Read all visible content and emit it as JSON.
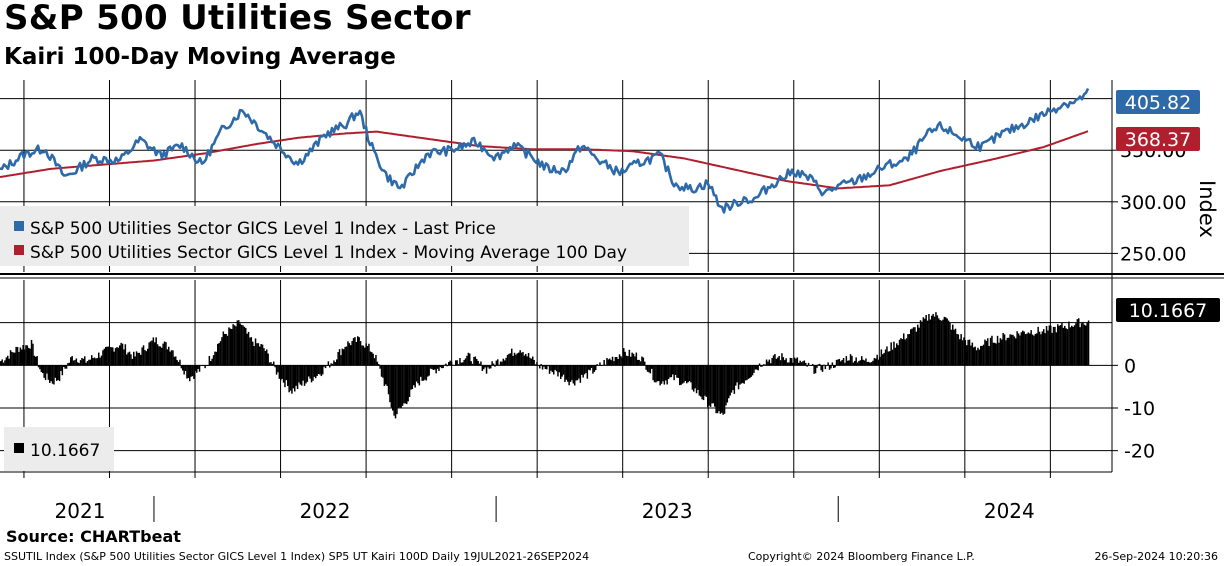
{
  "title": "S&P 500 Utilities Sector",
  "subtitle": "Kairi 100-Day Moving Average",
  "source": "Source: CHARTbeat",
  "footer": {
    "left": "SSUTIL Index (S&P 500 Utilities Sector GICS Level 1 Index) SP5 UT Kairi 100D  Daily 19JUL2021-26SEP2024",
    "center": "Copyright© 2024 Bloomberg Finance L.P.",
    "right": "26-Sep-2024 10:20:36"
  },
  "colors": {
    "price": "#2f6aa8",
    "moving_average": "#b01f2e",
    "kairi": "#000000",
    "grid": "#000000",
    "legend_bg": "#ececec"
  },
  "chart_data": [
    {
      "type": "line",
      "title": "S&P 500 Utilities Sector",
      "ylabel": "Index",
      "ylim": [
        232,
        418
      ],
      "yticks": [
        250,
        300,
        350
      ],
      "ytick_labels": [
        "250.00",
        "300.00",
        "350.00"
      ],
      "x_range": [
        2021.55,
        2024.73
      ],
      "x_label_positions": [
        2021.5,
        2022.5,
        2023.5,
        2024.5
      ],
      "x_labels": [
        "2021",
        "2022",
        "2023",
        "2024"
      ],
      "x_dividers": [
        2022.0,
        2023.0,
        2024.0
      ],
      "legend_position": "bottom-left",
      "series": [
        {
          "name": "S&P 500 Utilities Sector GICS Level 1 Index - Last Price",
          "x": [
            2021.55,
            2021.62,
            2021.68,
            2021.74,
            2021.77,
            2021.82,
            2021.9,
            2021.96,
            2022.02,
            2022.08,
            2022.14,
            2022.2,
            2022.26,
            2022.3,
            2022.35,
            2022.42,
            2022.46,
            2022.5,
            2022.56,
            2022.6,
            2022.64,
            2022.68,
            2022.72,
            2022.74,
            2022.76,
            2022.8,
            2022.87,
            2022.94,
            2023.0,
            2023.05,
            2023.1,
            2023.15,
            2023.2,
            2023.25,
            2023.3,
            2023.36,
            2023.42,
            2023.48,
            2023.52,
            2023.57,
            2023.62,
            2023.66,
            2023.7,
            2023.73,
            2023.75,
            2023.78,
            2023.82,
            2023.87,
            2023.92,
            2023.96,
            2024.0,
            2024.05,
            2024.1,
            2024.14,
            2024.2,
            2024.26,
            2024.3,
            2024.36,
            2024.42,
            2024.48,
            2024.54,
            2024.6,
            2024.66,
            2024.7,
            2024.73
          ],
          "values": [
            330,
            346,
            352,
            324,
            330,
            342,
            340,
            360,
            345,
            355,
            336,
            370,
            389,
            375,
            358,
            337,
            350,
            365,
            375,
            388,
            350,
            325,
            313,
            320,
            330,
            347,
            350,
            358,
            343,
            355,
            345,
            332,
            330,
            355,
            340,
            328,
            338,
            345,
            318,
            312,
            318,
            293,
            298,
            304,
            300,
            310,
            320,
            330,
            322,
            308,
            315,
            320,
            328,
            335,
            340,
            365,
            373,
            362,
            353,
            366,
            375,
            385,
            395,
            398,
            406
          ]
        },
        {
          "name": "S&P 500 Utilities Sector GICS Level 1 Index - Moving Average 100 Day",
          "x": [
            2021.55,
            2021.7,
            2021.85,
            2022.0,
            2022.15,
            2022.3,
            2022.42,
            2022.55,
            2022.65,
            2022.8,
            2022.95,
            2023.1,
            2023.25,
            2023.4,
            2023.55,
            2023.7,
            2023.85,
            2024.0,
            2024.15,
            2024.3,
            2024.45,
            2024.6,
            2024.73
          ],
          "values": [
            324,
            332,
            336,
            340,
            347,
            356,
            362,
            366,
            368,
            361,
            354,
            351,
            351,
            349,
            342,
            331,
            320,
            313,
            316,
            330,
            341,
            353,
            368.37
          ]
        }
      ],
      "last_value_labels": [
        "405.82",
        "368.37"
      ]
    },
    {
      "type": "bar",
      "title": "SP5 UT Kairi 100D",
      "ylim": [
        -25,
        20
      ],
      "yticks": [
        -20,
        -10,
        0
      ],
      "ytick_labels": [
        "-20",
        "-10",
        "0"
      ],
      "x_range": [
        2021.55,
        2024.73
      ],
      "legend_position": "bottom-left",
      "series": [
        {
          "name": "Kairi 100D",
          "x": [
            2021.55,
            2021.6,
            2021.64,
            2021.67,
            2021.7,
            2021.72,
            2021.76,
            2021.8,
            2021.85,
            2021.9,
            2021.94,
            2022.0,
            2022.05,
            2022.1,
            2022.15,
            2022.2,
            2022.25,
            2022.28,
            2022.32,
            2022.36,
            2022.4,
            2022.44,
            2022.48,
            2022.52,
            2022.56,
            2022.6,
            2022.64,
            2022.68,
            2022.7,
            2022.73,
            2022.77,
            2022.82,
            2022.87,
            2022.92,
            2022.97,
            2023.02,
            2023.07,
            2023.12,
            2023.18,
            2023.22,
            2023.27,
            2023.32,
            2023.37,
            2023.42,
            2023.47,
            2023.52,
            2023.57,
            2023.62,
            2023.66,
            2023.69,
            2023.73,
            2023.78,
            2023.83,
            2023.88,
            2023.93,
            2023.98,
            2024.03,
            2024.08,
            2024.13,
            2024.18,
            2024.23,
            2024.27,
            2024.31,
            2024.35,
            2024.4,
            2024.45,
            2024.5,
            2024.55,
            2024.6,
            2024.65,
            2024.7,
            2024.73
          ],
          "values": [
            1,
            4,
            5,
            -2,
            -4,
            -3,
            2,
            1,
            3,
            5,
            2,
            6,
            4,
            -3,
            0,
            7,
            10,
            6,
            4,
            -2,
            -6,
            -4,
            -2,
            1,
            5,
            6,
            3,
            -6,
            -12,
            -9,
            -4,
            -1,
            1,
            2,
            -1,
            2,
            4,
            0,
            -2,
            -4,
            -2,
            1,
            3,
            2,
            -4,
            -3,
            -5,
            -9,
            -12,
            -6,
            -3,
            1,
            2,
            1,
            -1,
            0,
            2,
            1,
            3,
            6,
            9,
            12,
            11,
            7,
            4,
            6,
            7,
            8,
            8,
            9,
            10,
            10.1667
          ]
        }
      ],
      "last_value_label": "10.1667"
    }
  ]
}
